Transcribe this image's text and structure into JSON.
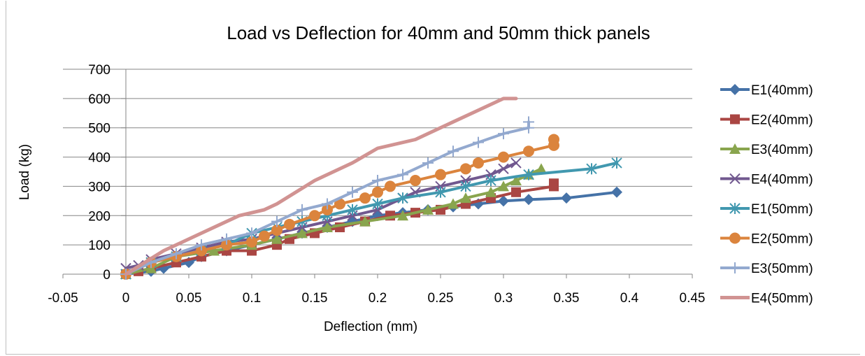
{
  "chart_data": {
    "type": "line",
    "title": "Load vs Deflection for 40mm and 50mm thick panels",
    "xlabel": "Deflection (mm)",
    "ylabel": "Load (kg)",
    "xlim": [
      -0.05,
      0.45
    ],
    "ylim": [
      0,
      700
    ],
    "x_ticks": [
      -0.05,
      0,
      0.05,
      0.1,
      0.15,
      0.2,
      0.25,
      0.3,
      0.35,
      0.4,
      0.45
    ],
    "x_tick_labels": [
      "-0.05",
      "0",
      "0.05",
      "0.1",
      "0.15",
      "0.2",
      "0.25",
      "0.3",
      "0.35",
      "0.4",
      "0.45"
    ],
    "y_ticks": [
      0,
      100,
      200,
      300,
      400,
      500,
      600,
      700
    ],
    "y_tick_labels": [
      "0",
      "100",
      "200",
      "300",
      "400",
      "500",
      "600",
      "700"
    ],
    "grid": "horizontal",
    "legend_position": "right",
    "series": [
      {
        "name": "E1(40mm)",
        "color": "#4572a7",
        "marker": "diamond",
        "x": [
          0,
          0.02,
          0.03,
          0.05,
          0.06,
          0.08,
          0.1,
          0.12,
          0.14,
          0.16,
          0.18,
          0.2,
          0.22,
          0.24,
          0.26,
          0.28,
          0.3,
          0.32,
          0.35,
          0.39
        ],
        "y": [
          0,
          10,
          20,
          40,
          60,
          80,
          100,
          120,
          140,
          160,
          180,
          200,
          210,
          220,
          230,
          240,
          250,
          255,
          260,
          280
        ]
      },
      {
        "name": "E2(40mm)",
        "color": "#aa4643",
        "marker": "square",
        "x": [
          0,
          0.01,
          0.02,
          0.04,
          0.06,
          0.08,
          0.1,
          0.12,
          0.13,
          0.15,
          0.17,
          0.19,
          0.21,
          0.23,
          0.25,
          0.27,
          0.29,
          0.31,
          0.34,
          0.34
        ],
        "y": [
          0,
          10,
          20,
          40,
          60,
          80,
          80,
          100,
          120,
          140,
          160,
          180,
          200,
          210,
          220,
          240,
          260,
          280,
          300,
          310
        ]
      },
      {
        "name": "E3(40mm)",
        "color": "#89a54e",
        "marker": "triangle",
        "x": [
          0,
          0.02,
          0.04,
          0.07,
          0.1,
          0.12,
          0.14,
          0.16,
          0.19,
          0.22,
          0.24,
          0.26,
          0.27,
          0.29,
          0.3,
          0.31,
          0.32,
          0.33
        ],
        "y": [
          0,
          20,
          60,
          80,
          100,
          120,
          140,
          160,
          180,
          200,
          220,
          240,
          260,
          280,
          300,
          320,
          340,
          360
        ]
      },
      {
        "name": "E4(40mm)",
        "color": "#71588f",
        "marker": "x",
        "x": [
          0,
          0.01,
          0.02,
          0.04,
          0.06,
          0.08,
          0.1,
          0.12,
          0.14,
          0.16,
          0.18,
          0.2,
          0.22,
          0.23,
          0.25,
          0.27,
          0.29,
          0.3,
          0.31
        ],
        "y": [
          20,
          30,
          50,
          70,
          90,
          110,
          120,
          140,
          160,
          180,
          200,
          220,
          260,
          280,
          300,
          320,
          340,
          360,
          380
        ]
      },
      {
        "name": "E1(50mm)",
        "color": "#4198af",
        "marker": "star",
        "x": [
          0,
          0.02,
          0.04,
          0.06,
          0.08,
          0.1,
          0.12,
          0.14,
          0.16,
          0.18,
          0.2,
          0.22,
          0.25,
          0.27,
          0.29,
          0.32,
          0.37,
          0.39
        ],
        "y": [
          0,
          40,
          60,
          80,
          100,
          140,
          160,
          180,
          200,
          220,
          240,
          260,
          280,
          300,
          320,
          340,
          360,
          380
        ]
      },
      {
        "name": "E2(50mm)",
        "color": "#db843d",
        "marker": "circle",
        "x": [
          0,
          0.02,
          0.04,
          0.06,
          0.08,
          0.1,
          0.11,
          0.12,
          0.13,
          0.15,
          0.16,
          0.17,
          0.19,
          0.2,
          0.21,
          0.23,
          0.25,
          0.27,
          0.28,
          0.3,
          0.32,
          0.34,
          0.34
        ],
        "y": [
          0,
          40,
          60,
          80,
          100,
          110,
          130,
          150,
          170,
          200,
          220,
          240,
          260,
          280,
          300,
          320,
          340,
          360,
          380,
          400,
          420,
          440,
          460
        ]
      },
      {
        "name": "E3(50mm)",
        "color": "#93a9cf",
        "marker": "plus",
        "x": [
          0,
          0.02,
          0.04,
          0.06,
          0.08,
          0.1,
          0.12,
          0.14,
          0.16,
          0.18,
          0.2,
          0.22,
          0.24,
          0.26,
          0.28,
          0.3,
          0.32,
          0.32
        ],
        "y": [
          0,
          40,
          70,
          100,
          120,
          140,
          180,
          220,
          240,
          280,
          320,
          340,
          380,
          420,
          450,
          480,
          500,
          520
        ]
      },
      {
        "name": "E4(50mm)",
        "color": "#d19392",
        "marker": "none",
        "x": [
          0,
          0.03,
          0.06,
          0.09,
          0.11,
          0.12,
          0.15,
          0.18,
          0.2,
          0.23,
          0.26,
          0.28,
          0.3,
          0.31
        ],
        "y": [
          0,
          80,
          140,
          200,
          220,
          240,
          320,
          380,
          430,
          460,
          520,
          560,
          600,
          600
        ]
      }
    ]
  }
}
